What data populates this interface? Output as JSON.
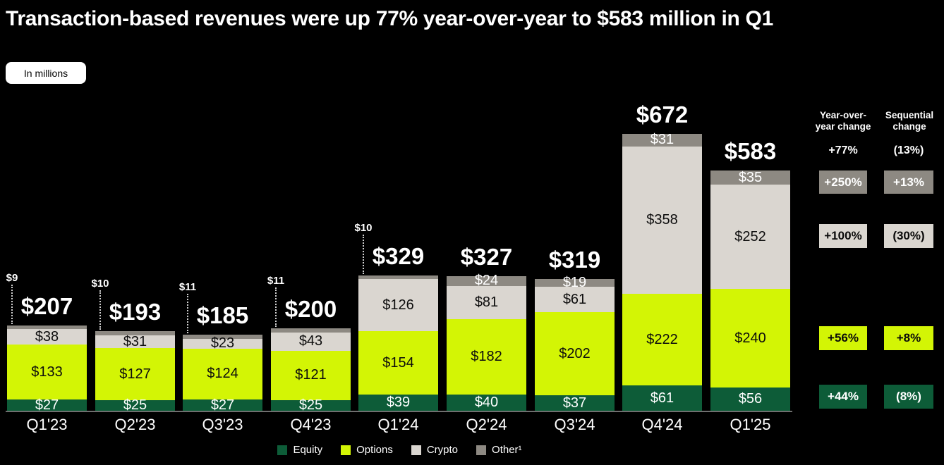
{
  "title": "Transaction-based revenues were up 77% year-over-year to $583 million in Q1",
  "badge_label": "In millions",
  "colors": {
    "bg": "#000000",
    "equity": "#0d5c38",
    "options": "#d3f505",
    "crypto": "#dad6d0",
    "other": "#8d8982",
    "text": "#ffffff"
  },
  "chart_data": {
    "type": "bar",
    "stacked": true,
    "value_prefix": "$",
    "categories": [
      "Q1'23",
      "Q2'23",
      "Q3'23",
      "Q4'23",
      "Q1'24",
      "Q2'24",
      "Q3'24",
      "Q4'24",
      "Q1'25"
    ],
    "series": [
      {
        "name": "Equity",
        "key": "equity",
        "values": [
          27,
          25,
          27,
          25,
          39,
          40,
          37,
          61,
          56
        ]
      },
      {
        "name": "Options",
        "key": "options",
        "values": [
          133,
          127,
          124,
          121,
          154,
          182,
          202,
          222,
          240
        ]
      },
      {
        "name": "Crypto",
        "key": "crypto",
        "values": [
          38,
          31,
          23,
          43,
          126,
          81,
          61,
          358,
          252
        ]
      },
      {
        "name": "Other",
        "key": "other",
        "values": [
          9,
          10,
          11,
          11,
          10,
          24,
          19,
          31,
          35
        ]
      }
    ],
    "totals": [
      207,
      193,
      185,
      200,
      329,
      327,
      319,
      672,
      583
    ],
    "other_label_mode": [
      "leader",
      "leader",
      "leader",
      "leader",
      "leader",
      "inside",
      "inside",
      "inside",
      "inside"
    ],
    "xlabel": "",
    "ylabel": "",
    "grid": false,
    "legend_position": "bottom"
  },
  "change_table": {
    "yoy_header": "Year-over-year change",
    "seq_header": "Sequential change",
    "rows": [
      {
        "name": "total",
        "yoy": "+77%",
        "seq": "(13%)"
      },
      {
        "name": "other",
        "yoy": "+250%",
        "seq": "+13%"
      },
      {
        "name": "crypto",
        "yoy": "+100%",
        "seq": "(30%)"
      },
      {
        "name": "options",
        "yoy": "+56%",
        "seq": "+8%"
      },
      {
        "name": "equity",
        "yoy": "+44%",
        "seq": "(8%)"
      }
    ]
  },
  "legend": {
    "items": [
      {
        "key": "equity",
        "label": "Equity"
      },
      {
        "key": "options",
        "label": "Options"
      },
      {
        "key": "crypto",
        "label": "Crypto"
      },
      {
        "key": "other",
        "label": "Other¹"
      }
    ]
  }
}
